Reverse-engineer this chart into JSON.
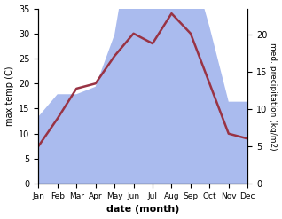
{
  "months": [
    "Jan",
    "Feb",
    "Mar",
    "Apr",
    "May",
    "Jun",
    "Jul",
    "Aug",
    "Sep",
    "Oct",
    "Nov",
    "Dec"
  ],
  "temperature": [
    7.5,
    13.0,
    19.0,
    20.0,
    25.5,
    30.0,
    28.0,
    34.0,
    30.0,
    20.0,
    10.0,
    9.0
  ],
  "precipitation": [
    9,
    12,
    12,
    13,
    20,
    35,
    32,
    34,
    30,
    21,
    11,
    11
  ],
  "temp_color": "#993344",
  "precip_fill_color": "#aabbee",
  "temp_ylim": [
    0,
    35
  ],
  "precip_ylim": [
    0,
    23.5
  ],
  "left_yticks": [
    0,
    5,
    10,
    15,
    20,
    25,
    30,
    35
  ],
  "right_yticks": [
    0,
    5,
    10,
    15,
    20
  ],
  "ylabel_left": "max temp (C)",
  "ylabel_right": "med. precipitation (kg/m2)",
  "xlabel": "date (month)",
  "background_color": "#ffffff",
  "figsize": [
    3.18,
    2.47
  ],
  "dpi": 100
}
